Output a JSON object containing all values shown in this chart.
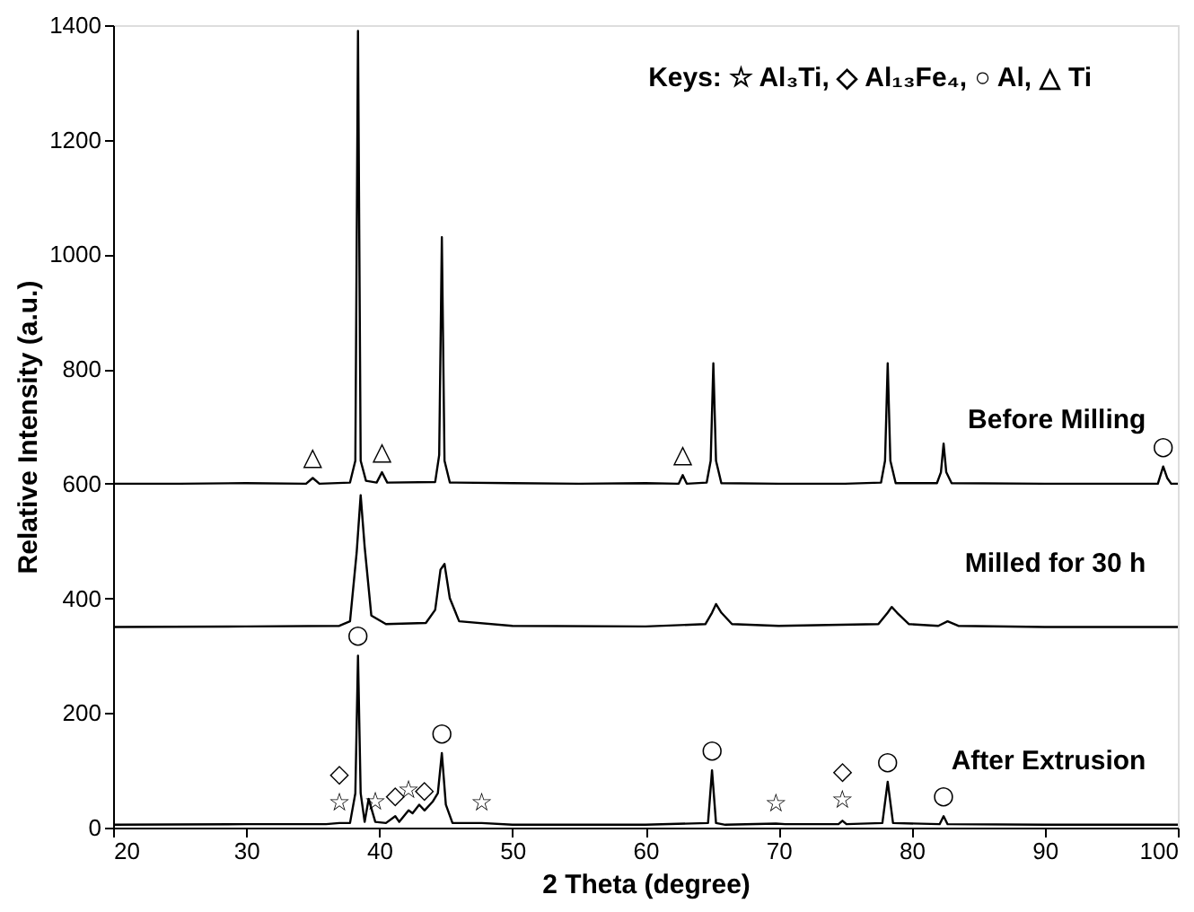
{
  "chart_data": {
    "type": "line",
    "xlabel": "2 Theta (degree)",
    "ylabel": "Relative Intensity (a.u.)",
    "xlim": [
      20,
      100
    ],
    "xticks": [
      20,
      30,
      40,
      50,
      60,
      70,
      80,
      90,
      100
    ],
    "ylim": [
      0,
      1400
    ],
    "yticks": [
      0,
      200,
      400,
      600,
      800,
      1000,
      1200,
      1400
    ],
    "grid": false,
    "marker": "none",
    "line_style": "solid",
    "series": [
      {
        "name": "Before Milling",
        "color": "#000000",
        "x": [
          20,
          25,
          30,
          34.5,
          35.0,
          35.5,
          37.8,
          38.2,
          38.4,
          38.6,
          39.0,
          39.8,
          40.2,
          40.6,
          44.2,
          44.5,
          44.7,
          44.9,
          45.3,
          50,
          55,
          60,
          62.5,
          62.8,
          63.1,
          64.6,
          64.9,
          65.1,
          65.3,
          65.7,
          70,
          75,
          77.7,
          78.0,
          78.2,
          78.4,
          78.8,
          81.9,
          82.2,
          82.4,
          82.6,
          83.0,
          90,
          95,
          98.5,
          98.9,
          99.2,
          99.5,
          100
        ],
        "values": [
          600,
          600,
          601,
          600,
          610,
          600,
          602,
          640,
          1390,
          640,
          605,
          602,
          620,
          602,
          603,
          650,
          1030,
          640,
          602,
          601,
          600,
          601,
          600,
          615,
          600,
          602,
          640,
          810,
          640,
          601,
          600,
          600,
          602,
          640,
          810,
          640,
          601,
          601,
          620,
          670,
          620,
          601,
          600,
          600,
          600,
          630,
          610,
          600,
          600
        ]
      },
      {
        "name": "Milled for 30 h",
        "color": "#000000",
        "x": [
          20,
          30,
          37,
          37.8,
          38.3,
          38.6,
          38.9,
          39.4,
          40.5,
          43.5,
          44.2,
          44.6,
          44.9,
          45.3,
          46,
          50,
          60,
          64.5,
          65.0,
          65.3,
          65.7,
          66.5,
          70,
          77.5,
          78.2,
          78.5,
          78.9,
          79.8,
          82,
          82.7,
          83.5,
          90,
          100
        ],
        "values": [
          350,
          351,
          352,
          360,
          480,
          580,
          490,
          370,
          355,
          357,
          380,
          450,
          460,
          400,
          360,
          352,
          351,
          355,
          375,
          390,
          375,
          355,
          352,
          355,
          375,
          385,
          375,
          355,
          352,
          360,
          352,
          350,
          350
        ]
      },
      {
        "name": "After Extrusion",
        "color": "#000000",
        "x": [
          20,
          30,
          36,
          37.0,
          37.8,
          38.2,
          38.4,
          38.6,
          38.9,
          39.2,
          39.7,
          40.5,
          41.2,
          41.5,
          42.2,
          42.5,
          43,
          43.4,
          44,
          44.4,
          44.7,
          45.0,
          45.5,
          47.7,
          50,
          60,
          64.7,
          65.0,
          65.3,
          66,
          69.8,
          70.5,
          74.5,
          74.8,
          75.1,
          77.8,
          78.2,
          78.6,
          82.1,
          82.4,
          82.7,
          90,
          100
        ],
        "values": [
          5,
          6,
          6,
          8,
          8,
          60,
          300,
          60,
          10,
          50,
          10,
          8,
          20,
          10,
          30,
          25,
          40,
          30,
          45,
          60,
          130,
          40,
          8,
          8,
          5,
          5,
          8,
          100,
          8,
          5,
          7,
          6,
          6,
          12,
          6,
          8,
          80,
          8,
          6,
          20,
          6,
          5,
          5
        ]
      }
    ],
    "annotations": [
      "Keys:  ☆ Al₃Ti, ◇ Al₁₃Fe₄,  ○ Al,  △ Ti",
      {
        "text": "△",
        "x": 35.0,
        "y": 610
      },
      {
        "text": "△",
        "x": 40.2,
        "y": 620
      },
      {
        "text": "△",
        "x": 62.8,
        "y": 615
      },
      {
        "text": "○",
        "x": 98.9,
        "y": 630
      },
      {
        "text": "○",
        "x": 38.4,
        "y": 300
      },
      {
        "text": "☆",
        "x": 37.0,
        "y": 8
      },
      {
        "text": "◇",
        "x": 37.0,
        "y": 8
      },
      {
        "text": "☆",
        "x": 39.7,
        "y": 10
      },
      {
        "text": "☆",
        "x": 42.2,
        "y": 30
      },
      {
        "text": "◇",
        "x": 41.2,
        "y": 20
      },
      {
        "text": "◇",
        "x": 43.4,
        "y": 30
      },
      {
        "text": "○",
        "x": 44.7,
        "y": 130
      },
      {
        "text": "☆",
        "x": 47.7,
        "y": 8
      },
      {
        "text": "○",
        "x": 65.0,
        "y": 100
      },
      {
        "text": "☆",
        "x": 69.8,
        "y": 7
      },
      {
        "text": "☆",
        "x": 74.8,
        "y": 12
      },
      {
        "text": "◇",
        "x": 74.8,
        "y": 12
      },
      {
        "text": "○",
        "x": 78.2,
        "y": 80
      },
      {
        "text": "○",
        "x": 82.4,
        "y": 20
      }
    ]
  }
}
